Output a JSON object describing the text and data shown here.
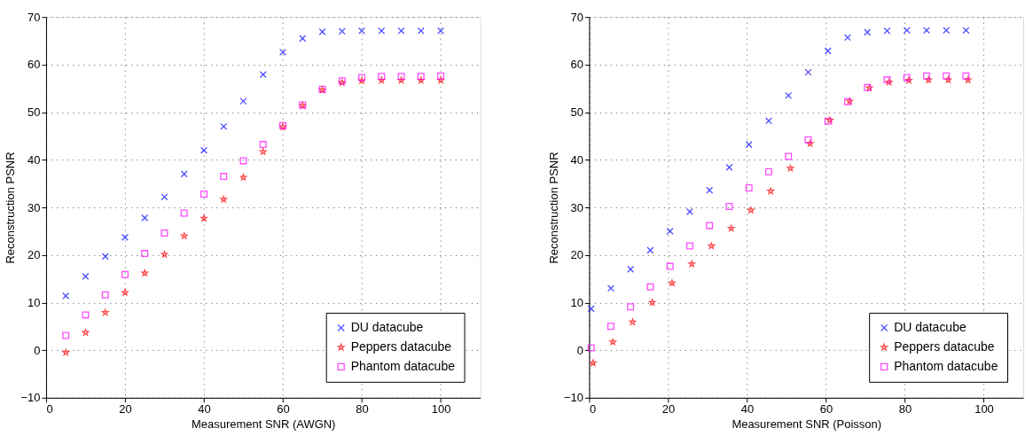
{
  "chart_data": [
    {
      "type": "scatter",
      "xlabel": "Measurement SNR (AWGN)",
      "ylabel": "Reconstruction PSNR",
      "xlim": [
        0,
        110
      ],
      "xticks": [
        0,
        20,
        40,
        60,
        80,
        100
      ],
      "ylim": [
        -10,
        70
      ],
      "yticks": [
        -10,
        0,
        10,
        20,
        30,
        40,
        50,
        60,
        70
      ],
      "grid": true,
      "legend": "bottom right",
      "x": [
        5,
        10,
        15,
        20,
        25,
        30,
        35,
        40,
        45,
        50,
        55,
        60,
        65,
        70,
        75,
        80,
        85,
        90,
        95,
        100
      ],
      "series": [
        {
          "name": "DU datacube",
          "color": "#0000ff",
          "marker": "cross",
          "values": [
            11.4,
            15.5,
            19.7,
            23.7,
            27.8,
            32.2,
            37.0,
            42.0,
            47.0,
            52.3,
            57.9,
            62.6,
            65.5,
            66.9,
            67.0,
            67.1,
            67.1,
            67.1,
            67.1,
            67.1
          ]
        },
        {
          "name": "Peppers datacube",
          "color": "#ff0000",
          "marker": "star",
          "values": [
            -0.5,
            3.7,
            7.9,
            12.1,
            16.2,
            20.1,
            24.0,
            27.7,
            31.7,
            36.3,
            41.7,
            46.9,
            51.4,
            54.7,
            56.2,
            56.6,
            56.7,
            56.7,
            56.7,
            56.7
          ]
        },
        {
          "name": "Phantom datacube",
          "color": "#ff00ff",
          "marker": "square",
          "values": [
            3.1,
            7.4,
            11.6,
            15.9,
            20.3,
            24.6,
            28.8,
            32.8,
            36.5,
            39.8,
            43.2,
            47.2,
            51.5,
            54.8,
            56.6,
            57.3,
            57.5,
            57.5,
            57.5,
            57.6
          ]
        }
      ]
    },
    {
      "type": "scatter",
      "xlabel": "Measurement SNR (Poisson)",
      "ylabel": "Reconstruction PSNR",
      "xlim": [
        0,
        110
      ],
      "xticks": [
        0,
        20,
        40,
        60,
        80,
        100
      ],
      "ylim": [
        -10,
        70
      ],
      "yticks": [
        -10,
        0,
        10,
        20,
        30,
        40,
        50,
        60,
        70
      ],
      "grid": true,
      "legend": "bottom right",
      "series": [
        {
          "name": "DU datacube",
          "color": "#0000ff",
          "marker": "cross",
          "x": [
            0.5,
            5.5,
            10.5,
            15.5,
            20.5,
            25.5,
            30.5,
            35.5,
            40.5,
            45.5,
            50.5,
            55.5,
            60.5,
            65.5,
            70.5,
            75.5,
            80.5,
            85.5,
            90.5,
            95.5
          ],
          "values": [
            8.7,
            13.0,
            17.0,
            21.0,
            25.0,
            29.1,
            33.6,
            38.4,
            43.2,
            48.2,
            53.5,
            58.4,
            62.9,
            65.7,
            66.8,
            67.1,
            67.2,
            67.2,
            67.2,
            67.2
          ]
        },
        {
          "name": "Peppers datacube",
          "color": "#ff0000",
          "marker": "star",
          "x": [
            1,
            6,
            11,
            16,
            21,
            26,
            31,
            36,
            41,
            46,
            51,
            56,
            61,
            66,
            71,
            76,
            81,
            86,
            91,
            96
          ],
          "values": [
            -2.7,
            1.7,
            5.9,
            10.0,
            14.1,
            18.1,
            21.9,
            25.6,
            29.4,
            33.4,
            38.2,
            43.4,
            48.3,
            52.3,
            55.1,
            56.3,
            56.7,
            56.8,
            56.8,
            56.8
          ]
        },
        {
          "name": "Phantom datacube",
          "color": "#ff00ff",
          "marker": "square",
          "x": [
            0.5,
            5.5,
            10.5,
            15.5,
            20.5,
            25.5,
            30.5,
            35.5,
            40.5,
            45.5,
            50.5,
            55.5,
            60.5,
            65.5,
            70.5,
            75.5,
            80.5,
            85.5,
            90.5,
            95.5
          ],
          "values": [
            0.5,
            5.0,
            9.1,
            13.3,
            17.6,
            21.9,
            26.2,
            30.2,
            34.1,
            37.5,
            40.7,
            44.2,
            48.1,
            52.2,
            55.2,
            56.8,
            57.3,
            57.6,
            57.6,
            57.6
          ]
        }
      ]
    }
  ]
}
